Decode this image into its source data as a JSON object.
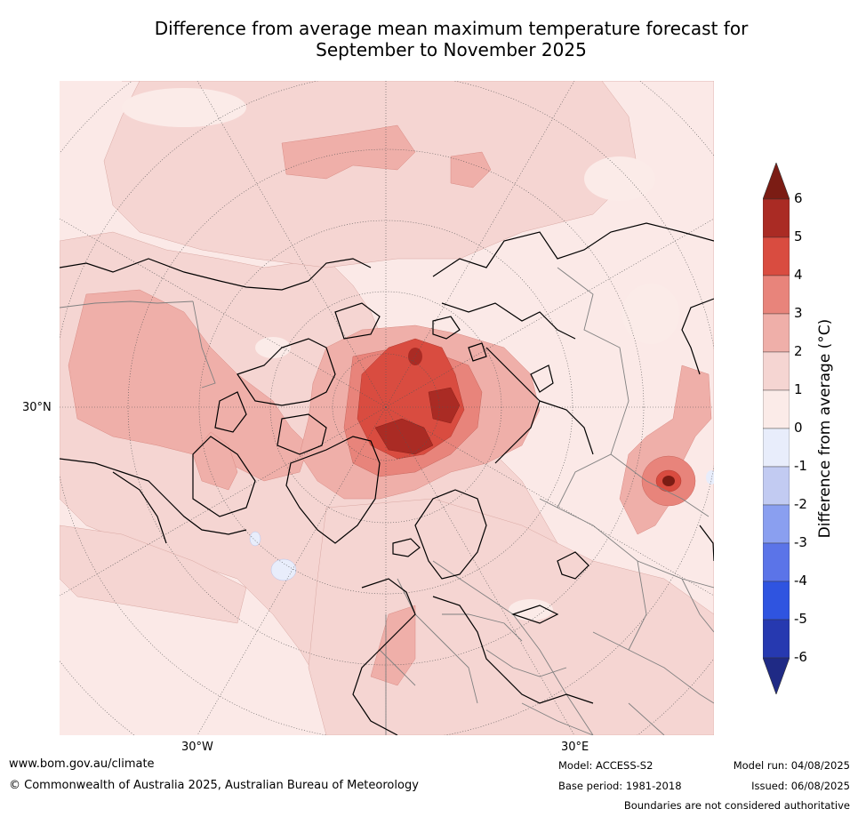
{
  "title": {
    "line1": "Difference from average mean maximum temperature forecast for",
    "line2": "September to November 2025"
  },
  "map": {
    "projection": "north-polar-stereographic",
    "labels": {
      "lat_30n": "30°N",
      "lon_30w": "30°W",
      "lon_30e": "30°E"
    },
    "colors": {
      "ocean_base": "#fbe9e7",
      "coast": "#000000",
      "borders": "#808080",
      "grid": "#555555"
    }
  },
  "colorbar": {
    "title": "Difference from average (°C)",
    "ticks": [
      "6",
      "5",
      "4",
      "3",
      "2",
      "1",
      "0",
      "-1",
      "-2",
      "-3",
      "-4",
      "-5",
      "-6"
    ],
    "bins": [
      {
        "range": "> 6",
        "color": "#7b1c14"
      },
      {
        "range": "5 to 6",
        "color": "#aa2b24"
      },
      {
        "range": "4 to 5",
        "color": "#d94c40"
      },
      {
        "range": "3 to 4",
        "color": "#e8847b"
      },
      {
        "range": "2 to 3",
        "color": "#efafa9"
      },
      {
        "range": "1 to 2",
        "color": "#f5d5d2"
      },
      {
        "range": "0 to 1",
        "color": "#fbebe8"
      },
      {
        "range": "-1 to 0",
        "color": "#e8edfb"
      },
      {
        "range": "-2 to -1",
        "color": "#c2cbf2"
      },
      {
        "range": "-3 to -2",
        "color": "#8a9ff0"
      },
      {
        "range": "-4 to -3",
        "color": "#5b74e8"
      },
      {
        "range": "-5 to -4",
        "color": "#2f54e0"
      },
      {
        "range": "-6 to -5",
        "color": "#2639b0"
      },
      {
        "range": "< -6",
        "color": "#1f2a85"
      }
    ]
  },
  "footer": {
    "website": "www.bom.gov.au/climate",
    "copyright": "© Commonwealth of Australia 2025, Australian Bureau of Meteorology",
    "model": "Model: ACCESS-S2",
    "base_period": "Base period: 1981-2018",
    "model_run": "Model run: 04/08/2025",
    "issued": "Issued: 06/08/2025",
    "disclaimer": "Boundaries are not considered authoritative"
  }
}
